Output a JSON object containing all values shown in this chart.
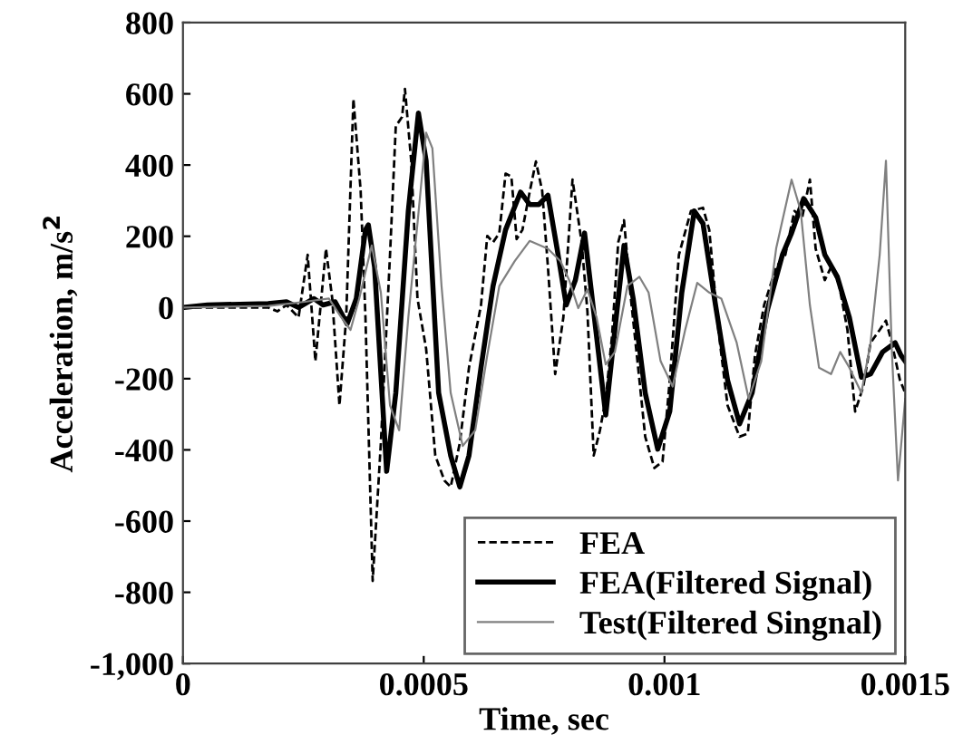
{
  "chart_data": {
    "type": "line",
    "xlabel": "Time, sec",
    "ylabel": "Acceleration, m/s$^{2}$",
    "xlim": [
      0,
      0.0015
    ],
    "xticks": [
      0,
      0.0005,
      0.001,
      0.0015
    ],
    "ylim": [
      -1000,
      800
    ],
    "yticks": [
      {
        "value": -1000,
        "label": "-1,000"
      },
      -800,
      -600,
      -400,
      -200,
      0,
      200,
      400,
      600,
      800
    ],
    "grid": false,
    "legend": "bottom right",
    "marker": "none",
    "series": [
      {
        "name": "FEA",
        "color": "#000000",
        "line_style": "dashed",
        "x": [
          0,
          0.000177,
          0.000196,
          0.000215,
          0.00024,
          0.000259,
          0.000275,
          0.000297,
          0.00031,
          0.000325,
          0.000339,
          0.000354,
          0.000369,
          0.000379,
          0.000394,
          0.000411,
          0.00043,
          0.000442,
          0.000455,
          0.000461,
          0.000474,
          0.000487,
          0.000505,
          0.000524,
          0.000543,
          0.000556,
          0.000575,
          0.000594,
          0.000619,
          0.000632,
          0.000644,
          0.000657,
          0.00067,
          0.000682,
          0.000693,
          0.000705,
          0.00072,
          0.000733,
          0.000746,
          0.000758,
          0.000773,
          0.00079,
          0.000809,
          0.000828,
          0.00084,
          0.000853,
          0.000866,
          0.000878,
          0.000891,
          0.000904,
          0.000916,
          0.000929,
          0.000948,
          0.00096,
          0.000979,
          0.000996,
          0.001011,
          0.00103,
          0.001055,
          0.00108,
          0.001093,
          0.001112,
          0.001131,
          0.001156,
          0.001173,
          0.001188,
          0.001207,
          0.001232,
          0.001251,
          0.00127,
          0.001286,
          0.001302,
          0.001314,
          0.001333,
          0.001346,
          0.001362,
          0.00138,
          0.001396,
          0.001413,
          0.001428,
          0.001447,
          0.00146,
          0.001472,
          0.001489,
          0.0015
        ],
        "values": [
          0,
          0,
          -11,
          7,
          -28,
          148,
          -151,
          165,
          25,
          -275,
          -28,
          586,
          328,
          -28,
          -768,
          -380,
          148,
          509,
          535,
          614,
          412,
          25,
          -116,
          -416,
          -486,
          -504,
          -380,
          -169,
          7,
          201,
          183,
          209,
          376,
          368,
          192,
          218,
          324,
          410,
          328,
          113,
          -187,
          -28,
          359,
          183,
          -11,
          -416,
          -345,
          -257,
          -81,
          183,
          245,
          42,
          -204,
          -363,
          -451,
          -433,
          -204,
          148,
          271,
          280,
          218,
          -63,
          -275,
          -363,
          -354,
          -134,
          7,
          113,
          148,
          271,
          253,
          359,
          165,
          77,
          113,
          69,
          -63,
          -292,
          -222,
          -99,
          -63,
          -37,
          -99,
          -204,
          -240
        ]
      },
      {
        "name": "FEA(Filtered Signal)",
        "color": "#000000",
        "line_style": "solid",
        "x": [
          0,
          5.1e-05,
          0.000177,
          0.000215,
          0.00024,
          0.000272,
          0.000291,
          0.000316,
          0.000341,
          0.00036,
          0.000379,
          0.000385,
          0.000398,
          0.000423,
          0.000442,
          0.000468,
          0.000489,
          0.000505,
          0.000531,
          0.000556,
          0.000575,
          0.000594,
          0.000619,
          0.000644,
          0.00067,
          0.000701,
          0.00072,
          0.000739,
          0.000758,
          0.000777,
          0.000796,
          0.000815,
          0.000834,
          0.000853,
          0.000878,
          0.000897,
          0.000916,
          0.000935,
          0.00096,
          0.000986,
          0.001011,
          0.001036,
          0.001062,
          0.00108,
          0.001106,
          0.001131,
          0.001156,
          0.001182,
          0.001213,
          0.001245,
          0.001264,
          0.001289,
          0.001314,
          0.001333,
          0.001359,
          0.001384,
          0.001409,
          0.001428,
          0.001453,
          0.001479,
          0.001491,
          0.0015
        ],
        "values": [
          0,
          7,
          11,
          16,
          0,
          25,
          7,
          16,
          -46,
          25,
          218,
          232,
          113,
          -460,
          -240,
          271,
          546,
          412,
          -240,
          -416,
          -504,
          -416,
          -169,
          60,
          218,
          324,
          289,
          289,
          315,
          165,
          7,
          77,
          209,
          -11,
          -302,
          -63,
          174,
          25,
          -240,
          -398,
          -292,
          42,
          271,
          236,
          7,
          -204,
          -327,
          -240,
          -11,
          148,
          209,
          306,
          253,
          148,
          86,
          -28,
          -196,
          -187,
          -125,
          -99,
          -134,
          -151
        ]
      },
      {
        "name": "Test(Filtered Singnal)",
        "color": "#808080",
        "line_style": "solid",
        "x": [
          0,
          0.000177,
          0.000253,
          0.000303,
          0.000329,
          0.000348,
          0.000366,
          0.000392,
          0.000411,
          0.00043,
          0.000449,
          0.000468,
          0.000487,
          0.000505,
          0.000518,
          0.000537,
          0.000556,
          0.000581,
          0.000607,
          0.000632,
          0.000657,
          0.000689,
          0.00072,
          0.000758,
          0.000784,
          0.000802,
          0.000821,
          0.00084,
          0.000859,
          0.000878,
          0.000897,
          0.000923,
          0.000948,
          0.000967,
          0.000992,
          0.001017,
          0.001043,
          0.001068,
          0.001093,
          0.001118,
          0.00115,
          0.001175,
          0.001201,
          0.001232,
          0.001264,
          0.001283,
          0.001302,
          0.001321,
          0.001346,
          0.001365,
          0.001384,
          0.001409,
          0.001428,
          0.001447,
          0.00146,
          0.001472,
          0.001485,
          0.0015
        ],
        "values": [
          0,
          4,
          16,
          25,
          -28,
          -63,
          25,
          174,
          42,
          -275,
          -345,
          -28,
          236,
          491,
          447,
          60,
          -240,
          -389,
          -345,
          -134,
          60,
          130,
          187,
          165,
          130,
          77,
          -2,
          51,
          -28,
          -160,
          -125,
          60,
          86,
          42,
          -151,
          -222,
          -63,
          69,
          42,
          25,
          -99,
          -257,
          -151,
          166,
          359,
          271,
          7,
          -169,
          -187,
          -125,
          -169,
          -240,
          -99,
          148,
          412,
          -116,
          -486,
          -257
        ]
      }
    ]
  }
}
